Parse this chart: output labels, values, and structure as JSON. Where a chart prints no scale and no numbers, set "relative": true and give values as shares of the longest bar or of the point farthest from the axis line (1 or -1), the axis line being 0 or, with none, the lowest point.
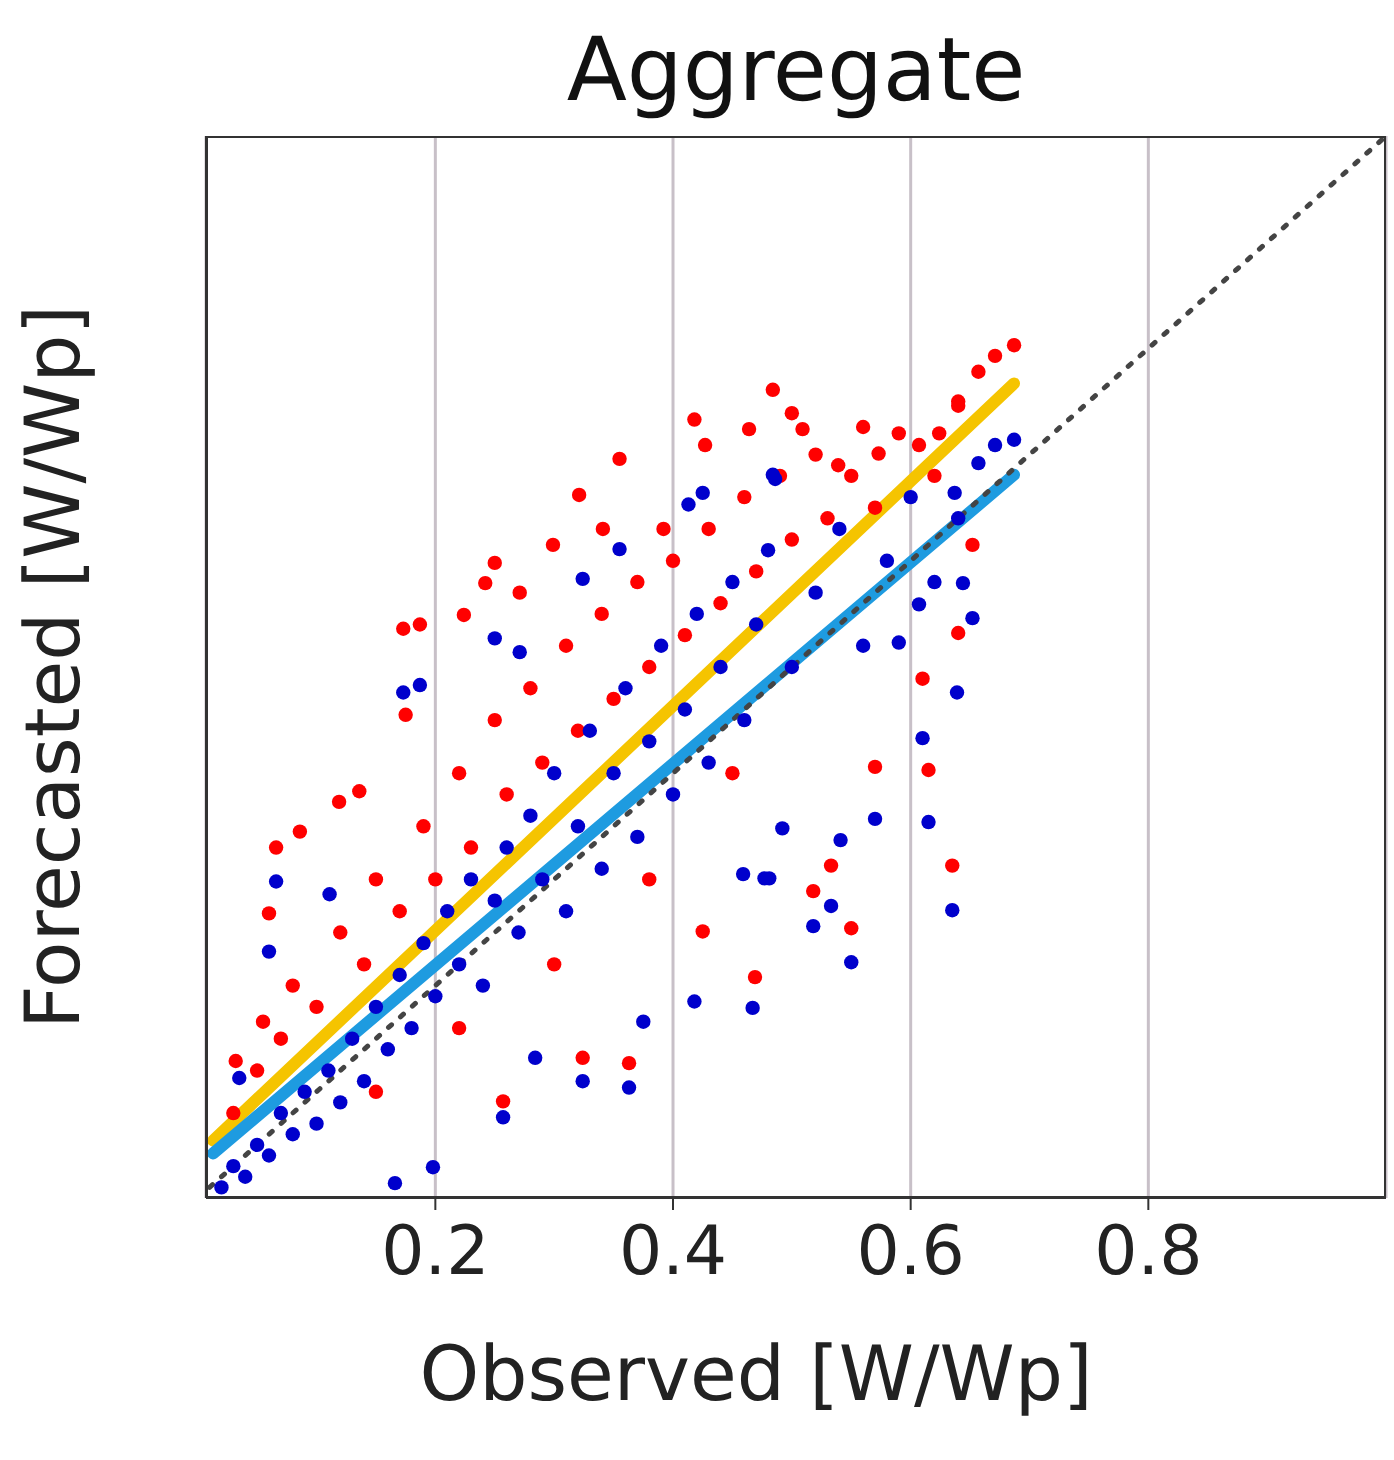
{
  "chart_data": {
    "type": "scatter",
    "title": "Aggregate",
    "xlabel": "Observed [W/Wp]",
    "ylabel": "Forecasted [W/Wp]",
    "xlim": [
      0.007,
      1.0
    ],
    "relative": true,
    "xticks": [
      0.2,
      0.4,
      0.6,
      0.8
    ],
    "grid": "x",
    "marker": "circle",
    "series": [
      {
        "type": "scatter",
        "color": "#ff0000",
        "x": [
          0.484,
          0.418,
          0.427,
          0.464,
          0.355,
          0.321,
          0.299,
          0.25,
          0.242,
          0.173,
          0.187,
          0.224,
          0.271,
          0.341,
          0.392,
          0.687,
          0.671,
          0.657,
          0.5,
          0.509,
          0.56,
          0.539,
          0.573,
          0.607,
          0.624,
          0.64,
          0.652,
          0.64,
          0.61,
          0.615,
          0.635,
          0.533,
          0.518,
          0.55,
          0.57,
          0.175,
          0.066,
          0.086,
          0.06,
          0.119,
          0.136,
          0.032,
          0.055,
          0.257,
          0.363,
          0.324,
          0.425,
          0.469,
          0.03,
          0.05,
          0.07,
          0.08,
          0.1,
          0.12,
          0.14,
          0.15,
          0.17,
          0.19,
          0.2,
          0.22,
          0.23,
          0.25,
          0.26,
          0.28,
          0.29,
          0.31,
          0.32,
          0.34,
          0.35,
          0.37,
          0.38,
          0.4,
          0.41,
          0.43,
          0.44,
          0.46,
          0.47,
          0.49,
          0.5,
          0.52,
          0.53,
          0.55,
          0.57,
          0.59,
          0.62,
          0.64,
          0.45,
          0.38,
          0.3,
          0.22,
          0.15
        ],
        "values": [
          0.761,
          0.733,
          0.709,
          0.724,
          0.696,
          0.662,
          0.615,
          0.598,
          0.579,
          0.536,
          0.54,
          0.549,
          0.57,
          0.63,
          0.63,
          0.803,
          0.793,
          0.778,
          0.739,
          0.724,
          0.726,
          0.69,
          0.701,
          0.709,
          0.72,
          0.746,
          0.615,
          0.532,
          0.489,
          0.403,
          0.313,
          0.313,
          0.289,
          0.254,
          0.406,
          0.455,
          0.33,
          0.345,
          0.268,
          0.373,
          0.383,
          0.129,
          0.166,
          0.091,
          0.127,
          0.132,
          0.251,
          0.208,
          0.08,
          0.12,
          0.15,
          0.2,
          0.18,
          0.25,
          0.22,
          0.3,
          0.27,
          0.35,
          0.3,
          0.4,
          0.33,
          0.45,
          0.38,
          0.48,
          0.41,
          0.52,
          0.44,
          0.55,
          0.47,
          0.58,
          0.5,
          0.6,
          0.53,
          0.63,
          0.56,
          0.66,
          0.59,
          0.68,
          0.62,
          0.7,
          0.64,
          0.68,
          0.65,
          0.72,
          0.68,
          0.75,
          0.4,
          0.3,
          0.22,
          0.16,
          0.1
        ]
      },
      {
        "type": "scatter",
        "color": "#0000cc",
        "x": [
          0.355,
          0.324,
          0.425,
          0.486,
          0.413,
          0.25,
          0.271,
          0.687,
          0.671,
          0.657,
          0.637,
          0.484,
          0.644,
          0.652,
          0.607,
          0.59,
          0.639,
          0.61,
          0.615,
          0.635,
          0.533,
          0.518,
          0.55,
          0.57,
          0.541,
          0.492,
          0.477,
          0.173,
          0.187,
          0.066,
          0.06,
          0.111,
          0.035,
          0.166,
          0.198,
          0.257,
          0.363,
          0.324,
          0.284,
          0.375,
          0.418,
          0.467,
          0.459,
          0.481,
          0.02,
          0.03,
          0.04,
          0.05,
          0.06,
          0.07,
          0.08,
          0.09,
          0.1,
          0.11,
          0.12,
          0.13,
          0.14,
          0.15,
          0.16,
          0.17,
          0.18,
          0.19,
          0.2,
          0.21,
          0.22,
          0.23,
          0.24,
          0.25,
          0.26,
          0.27,
          0.28,
          0.29,
          0.3,
          0.31,
          0.32,
          0.33,
          0.34,
          0.35,
          0.36,
          0.37,
          0.38,
          0.39,
          0.4,
          0.41,
          0.42,
          0.43,
          0.44,
          0.45,
          0.46,
          0.47,
          0.48,
          0.5,
          0.52,
          0.54,
          0.56,
          0.58,
          0.6,
          0.62,
          0.64
        ],
        "values": [
          0.611,
          0.583,
          0.664,
          0.677,
          0.653,
          0.527,
          0.514,
          0.714,
          0.709,
          0.692,
          0.664,
          0.681,
          0.579,
          0.546,
          0.559,
          0.523,
          0.476,
          0.433,
          0.354,
          0.271,
          0.275,
          0.256,
          0.222,
          0.357,
          0.337,
          0.348,
          0.301,
          0.476,
          0.483,
          0.298,
          0.232,
          0.286,
          0.113,
          0.014,
          0.029,
          0.076,
          0.104,
          0.11,
          0.132,
          0.166,
          0.185,
          0.179,
          0.305,
          0.301,
          0.01,
          0.03,
          0.02,
          0.05,
          0.04,
          0.08,
          0.06,
          0.1,
          0.07,
          0.12,
          0.09,
          0.15,
          0.11,
          0.18,
          0.14,
          0.21,
          0.16,
          0.24,
          0.19,
          0.27,
          0.22,
          0.3,
          0.2,
          0.28,
          0.33,
          0.25,
          0.36,
          0.3,
          0.4,
          0.27,
          0.35,
          0.44,
          0.31,
          0.4,
          0.48,
          0.34,
          0.43,
          0.52,
          0.38,
          0.46,
          0.55,
          0.41,
          0.5,
          0.58,
          0.45,
          0.54,
          0.61,
          0.5,
          0.57,
          0.63,
          0.52,
          0.6,
          0.66,
          0.58,
          0.64
        ]
      },
      {
        "type": "line",
        "color": "#f5c400",
        "marker": "none",
        "line_style": "solid",
        "x": [
          0.013,
          0.687
        ],
        "values": [
          0.054,
          0.767
        ]
      },
      {
        "type": "line",
        "color": "#1e9be0",
        "marker": "none",
        "line_style": "solid",
        "x": [
          0.013,
          0.687
        ],
        "values": [
          0.042,
          0.681
        ]
      },
      {
        "type": "line",
        "color": "#444444",
        "marker": "none",
        "line_style": "dotted",
        "x": [
          0.01,
          1.0
        ],
        "values": [
          0.01,
          1.0
        ]
      }
    ]
  }
}
